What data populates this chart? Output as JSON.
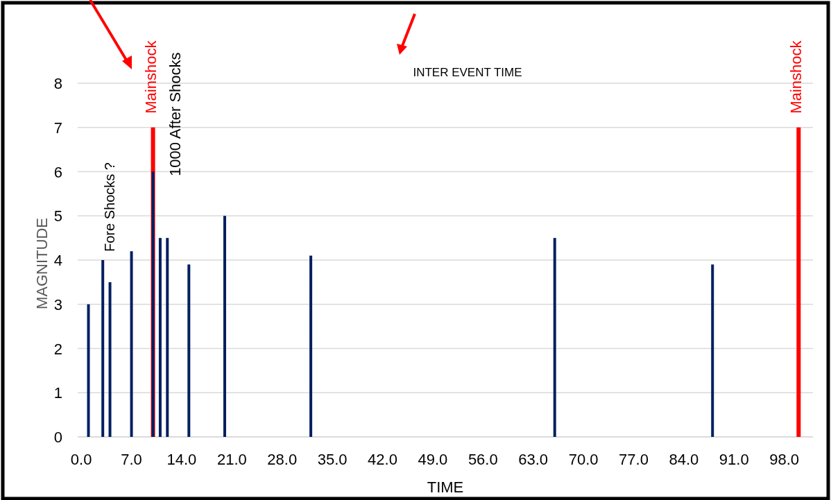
{
  "chart_data": {
    "type": "bar",
    "xlabel": "TIME",
    "ylabel": "MAGNITUDE",
    "series": [
      {
        "color": "#ff0000",
        "x": [
          10,
          100
        ],
        "values": [
          7,
          7
        ]
      },
      {
        "color": "#002060",
        "x": [
          1,
          3,
          4,
          7,
          10,
          11,
          12,
          15,
          20,
          32,
          66,
          88
        ],
        "values": [
          3,
          4,
          3.5,
          4.2,
          6,
          4.5,
          4.5,
          3.9,
          5,
          4.1,
          4.5,
          3.9
        ]
      }
    ],
    "xlim": [
      -0.5,
      102
    ],
    "ylim": [
      0,
      8
    ],
    "xticks": [
      {
        "value": 0,
        "label": "0.0"
      },
      {
        "value": 7,
        "label": "7.0"
      },
      {
        "value": 14,
        "label": "14.0"
      },
      {
        "value": 21,
        "label": "21.0"
      },
      {
        "value": 28,
        "label": "28.0"
      },
      {
        "value": 35,
        "label": "35.0"
      },
      {
        "value": 42,
        "label": "42.0"
      },
      {
        "value": 49,
        "label": "49.0"
      },
      {
        "value": 56,
        "label": "56.0"
      },
      {
        "value": 63,
        "label": "63.0"
      },
      {
        "value": 70,
        "label": "70.0"
      },
      {
        "value": 77,
        "label": "77.0"
      },
      {
        "value": 84,
        "label": "84.0"
      },
      {
        "value": 91,
        "label": "91.0"
      },
      {
        "value": 98,
        "label": "98.0"
      }
    ],
    "yticks": [
      0,
      1,
      2,
      3,
      4,
      5,
      6,
      7,
      8
    ],
    "grid": "y",
    "annotations": [
      "Fore Shocks ?",
      {
        "text": "Mainshock",
        "x": 10,
        "y": 7
      },
      "1000 After Shocks",
      {
        "text": "Mainshock",
        "x": 100,
        "y": 7
      },
      "INTER EVENT TIME"
    ]
  }
}
